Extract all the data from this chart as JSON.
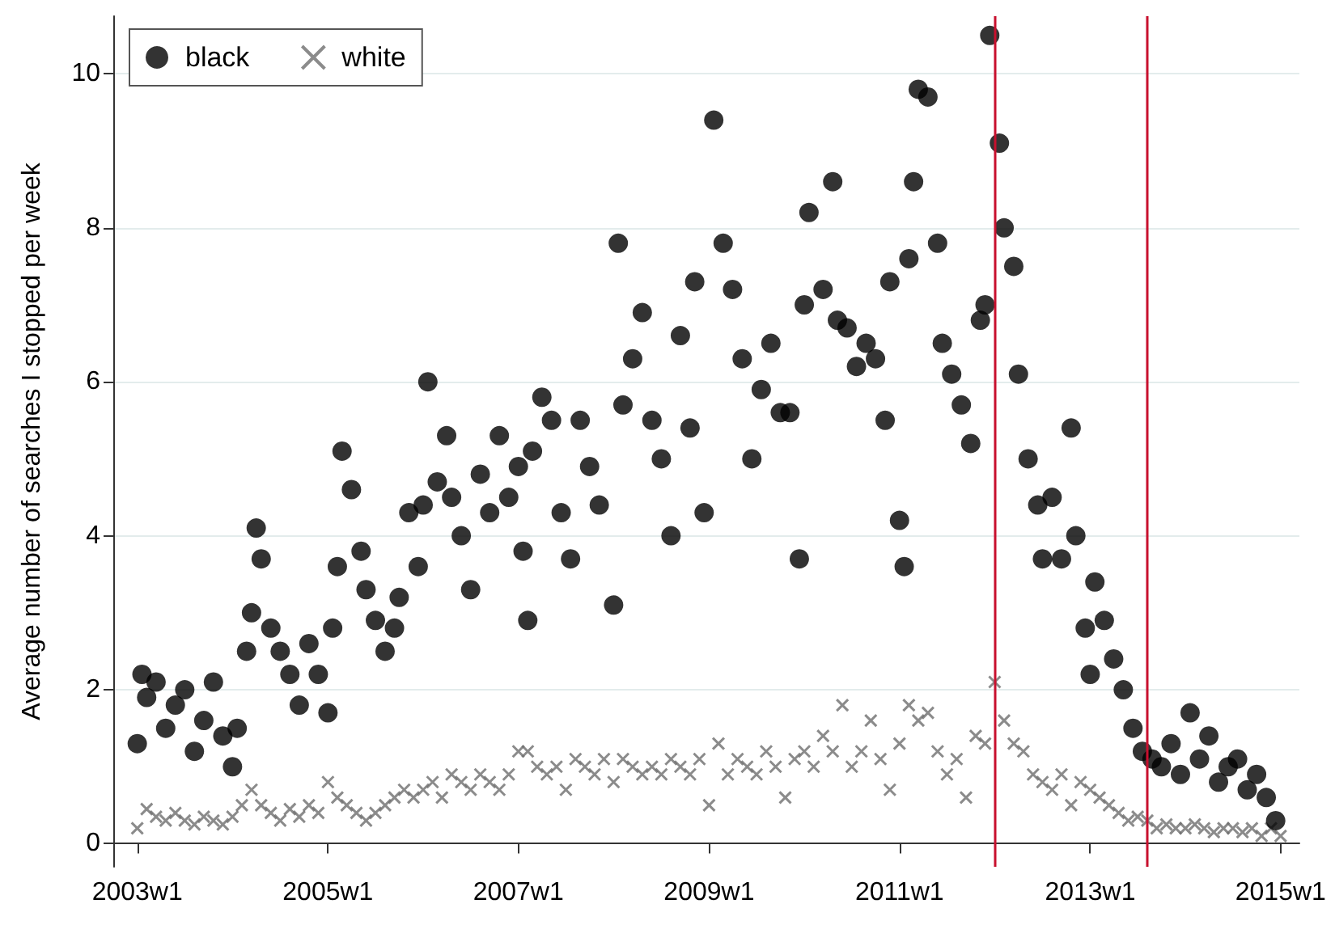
{
  "chart_data": {
    "type": "scatter",
    "ylabel": "Average number of searches I stopped per week",
    "xlim": [
      "2002-10-01",
      "2015-03-14"
    ],
    "ylim": [
      -0.3,
      10.75
    ],
    "xticks": [
      {
        "value": "2003-01-01",
        "label": "2003w1"
      },
      {
        "value": "2005-01-01",
        "label": "2005w1"
      },
      {
        "value": "2007-01-01",
        "label": "2007w1"
      },
      {
        "value": "2009-01-01",
        "label": "2009w1"
      },
      {
        "value": "2011-01-01",
        "label": "2011w1"
      },
      {
        "value": "2013-01-01",
        "label": "2013w1"
      },
      {
        "value": "2015-01-01",
        "label": "2015w1"
      }
    ],
    "yticks": [
      0,
      2,
      4,
      6,
      8,
      10
    ],
    "grid": "y",
    "legend": "top left",
    "ref_lines": [
      {
        "axis": "x",
        "value": "2012-01-01",
        "color": "#c8102e"
      },
      {
        "axis": "x",
        "value": "2013-08-08",
        "color": "#c8102e"
      }
    ],
    "series": [
      {
        "name": "black",
        "color": "#000000",
        "marker": "circle",
        "x": [
          "2003-01-01",
          "2003-01-19",
          "2003-02-06",
          "2003-03-14",
          "2003-04-20",
          "2003-05-27",
          "2003-07-02",
          "2003-08-08",
          "2003-09-13",
          "2003-10-20",
          "2003-11-25",
          "2004-01-01",
          "2004-01-19",
          "2004-02-24",
          "2004-03-14",
          "2004-04-01",
          "2004-04-20",
          "2004-05-27",
          "2004-07-02",
          "2004-08-08",
          "2004-09-13",
          "2004-10-20",
          "2004-11-25",
          "2005-01-01",
          "2005-01-19",
          "2005-02-06",
          "2005-02-24",
          "2005-04-01",
          "2005-05-08",
          "2005-05-27",
          "2005-07-02",
          "2005-08-08",
          "2005-09-13",
          "2005-10-01",
          "2005-11-07",
          "2005-12-13",
          "2006-01-01",
          "2006-01-19",
          "2006-02-24",
          "2006-04-01",
          "2006-04-20",
          "2006-05-27",
          "2006-07-02",
          "2006-08-08",
          "2006-09-13",
          "2006-10-20",
          "2006-11-25",
          "2007-01-01",
          "2007-01-19",
          "2007-02-06",
          "2007-02-24",
          "2007-04-01",
          "2007-05-08",
          "2007-06-14",
          "2007-07-20",
          "2007-08-26",
          "2007-10-01",
          "2007-11-07",
          "2008-01-01",
          "2008-01-19",
          "2008-02-06",
          "2008-03-14",
          "2008-04-20",
          "2008-05-27",
          "2008-07-02",
          "2008-08-08",
          "2008-09-13",
          "2008-10-20",
          "2008-11-07",
          "2008-12-13",
          "2009-01-19",
          "2009-02-24",
          "2009-04-01",
          "2009-05-08",
          "2009-06-14",
          "2009-07-20",
          "2009-08-26",
          "2009-10-01",
          "2009-11-07",
          "2009-12-13",
          "2010-01-01",
          "2010-01-19",
          "2010-03-14",
          "2010-04-20",
          "2010-05-08",
          "2010-06-14",
          "2010-07-20",
          "2010-08-26",
          "2010-10-01",
          "2010-11-07",
          "2010-11-25",
          "2011-01-01",
          "2011-01-19",
          "2011-02-06",
          "2011-02-24",
          "2011-03-14",
          "2011-04-20",
          "2011-05-27",
          "2011-06-14",
          "2011-07-20",
          "2011-08-26",
          "2011-10-01",
          "2011-11-07",
          "2011-11-25",
          "2011-12-13",
          "2012-01-19",
          "2012-02-06",
          "2012-03-14",
          "2012-04-01",
          "2012-05-08",
          "2012-06-14",
          "2012-07-02",
          "2012-08-08",
          "2012-09-13",
          "2012-10-20",
          "2012-11-07",
          "2012-12-13",
          "2013-01-01",
          "2013-01-19",
          "2013-02-24",
          "2013-04-01",
          "2013-05-08",
          "2013-06-14",
          "2013-07-20",
          "2013-08-26",
          "2013-10-01",
          "2013-11-07",
          "2013-12-13",
          "2014-01-19",
          "2014-02-24",
          "2014-04-01",
          "2014-05-08",
          "2014-06-14",
          "2014-07-20",
          "2014-08-26",
          "2014-10-01",
          "2014-11-07",
          "2014-12-13"
        ],
        "values": [
          1.3,
          2.2,
          1.9,
          2.1,
          1.5,
          1.8,
          2.0,
          1.2,
          1.6,
          2.1,
          1.4,
          1.0,
          1.5,
          2.5,
          3.0,
          4.1,
          3.7,
          2.8,
          2.5,
          2.2,
          1.8,
          2.6,
          2.2,
          1.7,
          2.8,
          3.6,
          5.1,
          4.6,
          3.8,
          3.3,
          2.9,
          2.5,
          2.8,
          3.2,
          4.3,
          3.6,
          4.4,
          6.0,
          4.7,
          5.3,
          4.5,
          4.0,
          3.3,
          4.8,
          4.3,
          5.3,
          4.5,
          4.9,
          3.8,
          2.9,
          5.1,
          5.8,
          5.5,
          4.3,
          3.7,
          5.5,
          4.9,
          4.4,
          3.1,
          7.8,
          5.7,
          6.3,
          6.9,
          5.5,
          5.0,
          4.0,
          6.6,
          5.4,
          7.3,
          4.3,
          9.4,
          7.8,
          7.2,
          6.3,
          5.0,
          5.9,
          6.5,
          5.6,
          5.6,
          3.7,
          7.0,
          8.2,
          7.2,
          8.6,
          6.8,
          6.7,
          6.2,
          6.5,
          6.3,
          5.5,
          7.3,
          4.2,
          3.6,
          7.6,
          8.6,
          9.8,
          9.7,
          7.8,
          6.5,
          6.1,
          5.7,
          5.2,
          6.8,
          7.0,
          10.5,
          9.1,
          8.0,
          7.5,
          6.1,
          5.0,
          4.4,
          3.7,
          4.5,
          3.7,
          5.4,
          4.0,
          2.8,
          2.2,
          3.4,
          2.9,
          2.4,
          2.0,
          1.5,
          1.2,
          1.1,
          1.0,
          1.3,
          0.9,
          1.7,
          1.1,
          1.4,
          0.8,
          1.0,
          1.1,
          0.7,
          0.9,
          0.6,
          0.3
        ]
      },
      {
        "name": "white",
        "color": "#6e6e6e",
        "marker": "cross",
        "x": [
          "2003-01-01",
          "2003-02-06",
          "2003-03-14",
          "2003-04-20",
          "2003-05-27",
          "2003-07-02",
          "2003-08-08",
          "2003-09-13",
          "2003-10-20",
          "2003-11-25",
          "2004-01-01",
          "2004-02-06",
          "2004-03-14",
          "2004-04-20",
          "2004-05-27",
          "2004-07-02",
          "2004-08-08",
          "2004-09-13",
          "2004-10-20",
          "2004-11-25",
          "2005-01-01",
          "2005-02-06",
          "2005-03-14",
          "2005-04-20",
          "2005-05-27",
          "2005-07-02",
          "2005-08-08",
          "2005-09-13",
          "2005-10-20",
          "2005-11-25",
          "2006-01-01",
          "2006-02-06",
          "2006-03-14",
          "2006-04-20",
          "2006-05-27",
          "2006-07-02",
          "2006-08-08",
          "2006-09-13",
          "2006-10-20",
          "2006-11-25",
          "2007-01-01",
          "2007-02-06",
          "2007-03-14",
          "2007-04-20",
          "2007-05-27",
          "2007-07-02",
          "2007-08-08",
          "2007-09-13",
          "2007-10-20",
          "2007-11-25",
          "2008-01-01",
          "2008-02-06",
          "2008-03-14",
          "2008-04-20",
          "2008-05-27",
          "2008-07-02",
          "2008-08-08",
          "2008-09-13",
          "2008-10-20",
          "2008-11-25",
          "2009-01-01",
          "2009-02-06",
          "2009-03-14",
          "2009-04-20",
          "2009-05-27",
          "2009-07-02",
          "2009-08-08",
          "2009-09-13",
          "2009-10-20",
          "2009-11-25",
          "2010-01-01",
          "2010-02-06",
          "2010-03-14",
          "2010-04-20",
          "2010-05-27",
          "2010-07-02",
          "2010-08-08",
          "2010-09-13",
          "2010-10-20",
          "2010-11-25",
          "2011-01-01",
          "2011-02-06",
          "2011-03-14",
          "2011-04-20",
          "2011-05-27",
          "2011-07-02",
          "2011-08-08",
          "2011-09-13",
          "2011-10-20",
          "2011-11-25",
          "2012-01-01",
          "2012-02-06",
          "2012-03-14",
          "2012-04-20",
          "2012-05-27",
          "2012-07-02",
          "2012-08-08",
          "2012-09-13",
          "2012-10-20",
          "2012-11-25",
          "2013-01-01",
          "2013-02-06",
          "2013-03-14",
          "2013-04-20",
          "2013-05-27",
          "2013-07-02",
          "2013-08-08",
          "2013-09-13",
          "2013-10-20",
          "2013-11-25",
          "2014-01-01",
          "2014-02-06",
          "2014-03-14",
          "2014-04-20",
          "2014-05-27",
          "2014-07-02",
          "2014-08-08",
          "2014-09-13",
          "2014-10-20",
          "2014-11-25",
          "2015-01-01"
        ],
        "values": [
          0.2,
          0.45,
          0.35,
          0.3,
          0.4,
          0.3,
          0.25,
          0.35,
          0.3,
          0.25,
          0.35,
          0.5,
          0.7,
          0.5,
          0.4,
          0.3,
          0.45,
          0.35,
          0.5,
          0.4,
          0.8,
          0.6,
          0.5,
          0.4,
          0.3,
          0.4,
          0.5,
          0.6,
          0.7,
          0.6,
          0.7,
          0.8,
          0.6,
          0.9,
          0.8,
          0.7,
          0.9,
          0.8,
          0.7,
          0.9,
          1.2,
          1.2,
          1.0,
          0.9,
          1.0,
          0.7,
          1.1,
          1.0,
          0.9,
          1.1,
          0.8,
          1.1,
          1.0,
          0.9,
          1.0,
          0.9,
          1.1,
          1.0,
          0.9,
          1.1,
          0.5,
          1.3,
          0.9,
          1.1,
          1.0,
          0.9,
          1.2,
          1.0,
          0.6,
          1.1,
          1.2,
          1.0,
          1.4,
          1.2,
          1.8,
          1.0,
          1.2,
          1.6,
          1.1,
          0.7,
          1.3,
          1.8,
          1.6,
          1.7,
          1.2,
          0.9,
          1.1,
          0.6,
          1.4,
          1.3,
          2.1,
          1.6,
          1.3,
          1.2,
          0.9,
          0.8,
          0.7,
          0.9,
          0.5,
          0.8,
          0.7,
          0.6,
          0.5,
          0.4,
          0.3,
          0.35,
          0.3,
          0.2,
          0.25,
          0.2,
          0.2,
          0.25,
          0.2,
          0.15,
          0.2,
          0.2,
          0.15,
          0.2,
          0.1,
          0.2,
          0.1
        ]
      }
    ]
  }
}
